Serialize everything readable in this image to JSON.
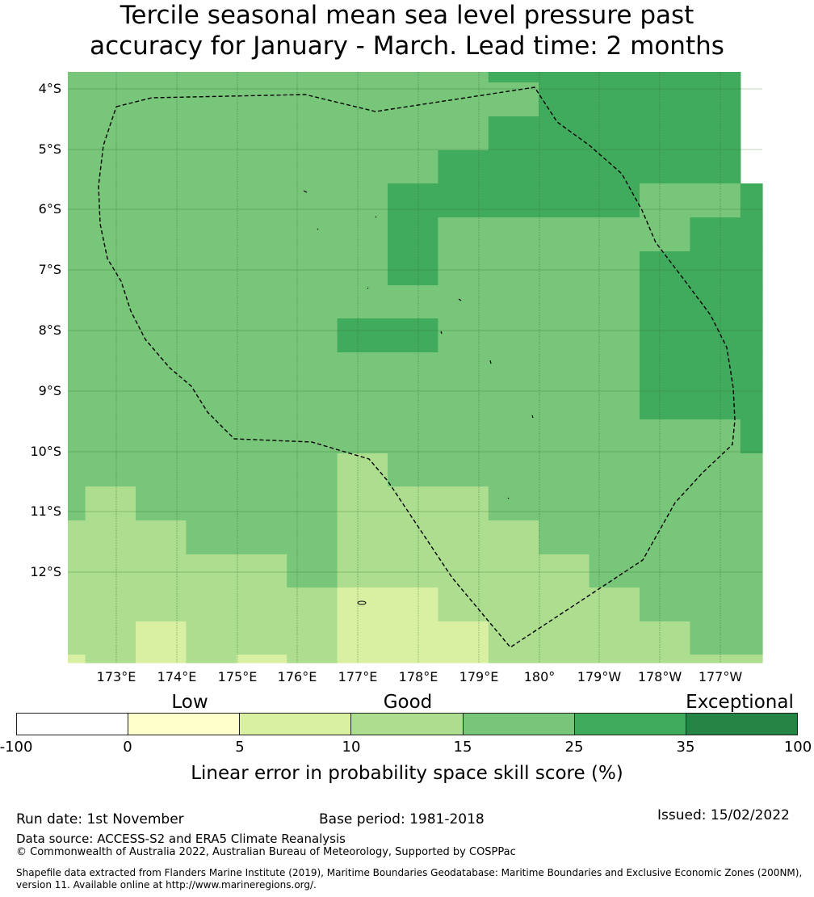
{
  "title": {
    "line1": "Tercile seasonal mean sea level pressure past",
    "line2": "accuracy for January - March. Lead time: 2 months"
  },
  "map": {
    "lat_labels": [
      "4°S",
      "5°S",
      "6°S",
      "7°S",
      "8°S",
      "9°S",
      "10°S",
      "11°S",
      "12°S"
    ],
    "lon_labels": [
      "173°E",
      "174°E",
      "175°E",
      "176°E",
      "177°E",
      "178°E",
      "179°E",
      "180°",
      "179°W",
      "178°W",
      "177°W"
    ],
    "colors": {
      "lt0": "#ffffff",
      "0to5": "#ffffcc",
      "5to10": "#d9f0a3",
      "10to15": "#addd8e",
      "15to25": "#78c679",
      "25to35": "#41ab5d",
      "35to100": "#238443"
    },
    "grid_color": "#2f6b2f",
    "boundary_style": "dashed black"
  },
  "legend": {
    "categories": [
      "Low",
      "Good",
      "Exceptional"
    ],
    "ticks": [
      "-100",
      "0",
      "5",
      "10",
      "15",
      "25",
      "35",
      "100"
    ],
    "colors": [
      "#ffffff",
      "#ffffcc",
      "#d9f0a3",
      "#addd8e",
      "#78c679",
      "#41ab5d",
      "#238443"
    ],
    "label": "Linear error in probability space skill score (%)"
  },
  "footer": {
    "run_date": "Run date: 1st November",
    "base_period": "Base period: 1981-2018",
    "issued": "Issued: 15/02/2022",
    "data_source": "Data source: ACCESS-S2 and ERA5 Climate Reanalysis",
    "copyright": "© Commonwealth of Australia 2022, Australian Bureau of Meteorology, Supported by COSPPac",
    "shapefile_line1": "Shapefile data extracted from Flanders Marine Institute (2019), Maritime Boundaries Geodatabase: Maritime Boundaries and Exclusive Economic Zones (200NM),",
    "shapefile_line2": "version 11. Available online at http://www.marineregions.org/."
  }
}
